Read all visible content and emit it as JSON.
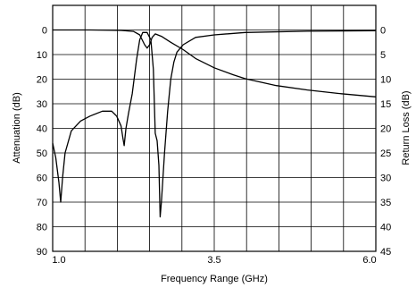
{
  "chart_data": {
    "type": "line",
    "title": "",
    "xlabel": "Frequency Range (GHz)",
    "ylabel_left": "Attenuation (dB)",
    "ylabel_right": "Return Loss (dB)",
    "xlim": [
      0.9,
      6.1
    ],
    "ylim_left": [
      90,
      -10
    ],
    "ylim_right": [
      45,
      -5
    ],
    "x_tick_labels": [
      {
        "x": 1.0,
        "label": "1.0"
      },
      {
        "x": 3.5,
        "label": "3.5"
      },
      {
        "x": 6.0,
        "label": "6.0"
      }
    ],
    "left_tick_labels": [
      {
        "value": 0,
        "label": "0"
      },
      {
        "value": 10,
        "label": "10"
      },
      {
        "value": 20,
        "label": "20"
      },
      {
        "value": 30,
        "label": "30"
      },
      {
        "value": 40,
        "label": "40"
      },
      {
        "value": 50,
        "label": "50"
      },
      {
        "value": 60,
        "label": "60"
      },
      {
        "value": 70,
        "label": "70"
      },
      {
        "value": 80,
        "label": "80"
      },
      {
        "value": 90,
        "label": "90"
      }
    ],
    "right_tick_labels": [
      {
        "value": 0,
        "label": "0"
      },
      {
        "value": 5,
        "label": "5"
      },
      {
        "value": 10,
        "label": "10"
      },
      {
        "value": 15,
        "label": "15"
      },
      {
        "value": 20,
        "label": "20"
      },
      {
        "value": 25,
        "label": "25"
      },
      {
        "value": 30,
        "label": "30"
      },
      {
        "value": 35,
        "label": "35"
      },
      {
        "value": 40,
        "label": "40"
      },
      {
        "value": 45,
        "label": "45"
      }
    ],
    "grid": true,
    "grid_x_divisions": 10,
    "grid_y_divisions": 10,
    "series": [
      {
        "axis": "left",
        "color": "#000000",
        "points": [
          [
            0.9,
            46
          ],
          [
            0.95,
            52
          ],
          [
            1.0,
            62
          ],
          [
            1.03,
            70
          ],
          [
            1.06,
            60
          ],
          [
            1.1,
            50
          ],
          [
            1.2,
            41
          ],
          [
            1.35,
            37
          ],
          [
            1.5,
            35
          ],
          [
            1.7,
            33
          ],
          [
            1.85,
            33
          ],
          [
            1.93,
            35
          ],
          [
            2.0,
            39
          ],
          [
            2.03,
            44
          ],
          [
            2.05,
            47
          ],
          [
            2.08,
            40
          ],
          [
            2.12,
            34
          ],
          [
            2.18,
            26
          ],
          [
            2.25,
            12
          ],
          [
            2.3,
            4
          ],
          [
            2.35,
            1
          ],
          [
            2.42,
            1
          ],
          [
            2.48,
            4
          ],
          [
            2.52,
            16
          ],
          [
            2.55,
            42
          ],
          [
            2.58,
            45
          ],
          [
            2.61,
            55
          ],
          [
            2.63,
            76
          ],
          [
            2.65,
            70
          ],
          [
            2.7,
            50
          ],
          [
            2.75,
            33
          ],
          [
            2.8,
            20
          ],
          [
            2.85,
            13
          ],
          [
            2.9,
            9
          ],
          [
            3.0,
            6
          ],
          [
            3.2,
            3
          ],
          [
            3.5,
            2
          ],
          [
            4.0,
            1
          ],
          [
            5.0,
            0.5
          ],
          [
            6.1,
            0.3
          ]
        ]
      },
      {
        "axis": "right",
        "color": "#000000",
        "points": [
          [
            0.9,
            0
          ],
          [
            1.5,
            0
          ],
          [
            2.0,
            0.1
          ],
          [
            2.2,
            0.3
          ],
          [
            2.3,
            1.0
          ],
          [
            2.38,
            3.0
          ],
          [
            2.42,
            3.7
          ],
          [
            2.46,
            3.0
          ],
          [
            2.5,
            1.5
          ],
          [
            2.55,
            0.8
          ],
          [
            2.65,
            1.3
          ],
          [
            2.8,
            2.5
          ],
          [
            3.0,
            4.0
          ],
          [
            3.2,
            5.8
          ],
          [
            3.5,
            7.7
          ],
          [
            3.8,
            9.1
          ],
          [
            4.0,
            9.9
          ],
          [
            4.5,
            11.3
          ],
          [
            5.0,
            12.2
          ],
          [
            5.5,
            12.9
          ],
          [
            6.1,
            13.6
          ]
        ]
      }
    ]
  }
}
